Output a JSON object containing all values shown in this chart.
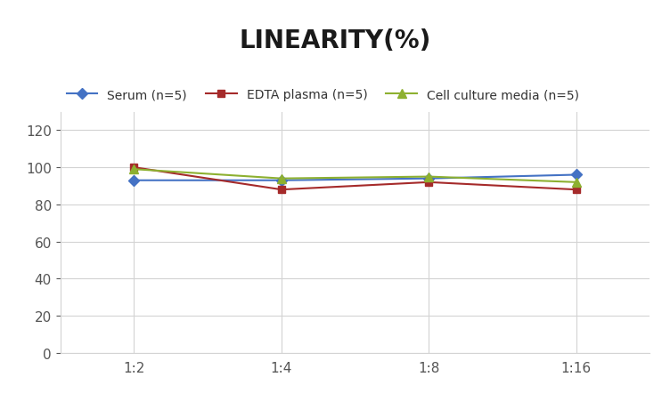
{
  "title": "LINEARITY(%)",
  "x_labels": [
    "1:2",
    "1:4",
    "1:8",
    "1:16"
  ],
  "x_positions": [
    0,
    1,
    2,
    3
  ],
  "series": [
    {
      "label": "Serum (n=5)",
      "values": [
        93,
        93,
        94,
        96
      ],
      "color": "#4472C4",
      "marker": "D",
      "markersize": 6
    },
    {
      "label": "EDTA plasma (n=5)",
      "values": [
        100,
        88,
        92,
        88
      ],
      "color": "#A52A2A",
      "marker": "s",
      "markersize": 6
    },
    {
      "label": "Cell culture media (n=5)",
      "values": [
        99,
        94,
        95,
        92
      ],
      "color": "#8DB030",
      "marker": "^",
      "markersize": 7
    }
  ],
  "ylim": [
    0,
    130
  ],
  "yticks": [
    0,
    20,
    40,
    60,
    80,
    100,
    120
  ],
  "grid_color": "#D3D3D3",
  "background_color": "#FFFFFF",
  "title_fontsize": 20,
  "legend_fontsize": 10,
  "tick_fontsize": 11
}
